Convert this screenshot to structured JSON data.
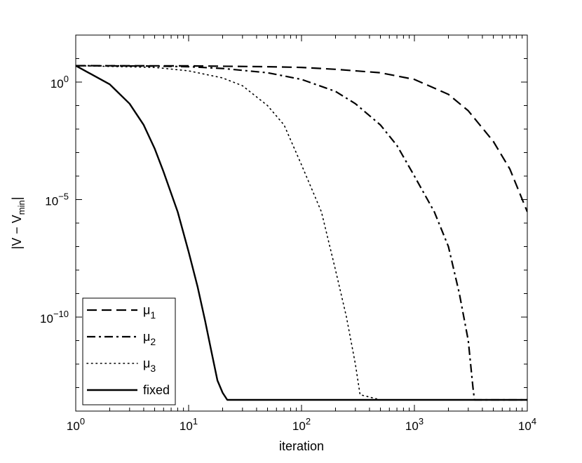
{
  "chart_data": {
    "type": "line",
    "title": "",
    "xlabel": "iteration",
    "ylabel": "|V − V_min|",
    "ylabel_parts": {
      "main": "|V − V",
      "sub": "min",
      "end": "|"
    },
    "xscale": "log",
    "yscale": "log",
    "xlim": [
      1,
      10000
    ],
    "ylim": [
      1e-14,
      100.0
    ],
    "grid": false,
    "legend_position": "bottom-left",
    "x_ticks": [
      {
        "base": "10",
        "exp": "0"
      },
      {
        "base": "10",
        "exp": "1"
      },
      {
        "base": "10",
        "exp": "2"
      },
      {
        "base": "10",
        "exp": "3"
      },
      {
        "base": "10",
        "exp": "4"
      }
    ],
    "y_ticks": [
      {
        "base": "10",
        "exp": "0",
        "value": 1
      },
      {
        "base": "10",
        "exp": "−5",
        "value": 1e-05
      },
      {
        "base": "10",
        "exp": "−10",
        "value": 1e-10
      }
    ],
    "series": [
      {
        "name": "μ1",
        "label_main": "μ",
        "label_sub": "1",
        "style": "dashed",
        "x": [
          1,
          10,
          50,
          100,
          200,
          500,
          1000,
          2000,
          3000,
          5000,
          7000,
          10000
        ],
        "y": [
          5,
          4.9,
          4.5,
          4.2,
          3.5,
          2.5,
          1.3,
          0.3,
          0.06,
          0.003,
          0.0002,
          3e-06
        ]
      },
      {
        "name": "μ2",
        "label_main": "μ",
        "label_sub": "2",
        "style": "dashdot",
        "x": [
          1,
          5,
          10,
          20,
          50,
          100,
          200,
          300,
          500,
          700,
          1000,
          1500,
          2000,
          2500,
          3000,
          3300,
          3400,
          5000,
          10000
        ],
        "y": [
          5,
          4.8,
          4.5,
          3.8,
          2.5,
          1.3,
          0.4,
          0.12,
          0.015,
          0.002,
          0.0001,
          3e-06,
          1e-07,
          1e-09,
          1e-11,
          1e-13,
          3e-14,
          3e-14,
          3e-14
        ]
      },
      {
        "name": "μ3",
        "label_main": "μ",
        "label_sub": "3",
        "style": "dotted",
        "x": [
          1,
          5,
          10,
          20,
          30,
          50,
          70,
          100,
          150,
          200,
          250,
          300,
          330,
          500,
          1000,
          3000
        ],
        "y": [
          5,
          4.2,
          3,
          1.5,
          0.7,
          0.1,
          0.015,
          0.0003,
          3e-06,
          1e-08,
          1e-10,
          1e-12,
          5e-14,
          3e-14,
          3e-14,
          3e-14
        ]
      },
      {
        "name": "fixed",
        "label_main": "fixed",
        "label_sub": "",
        "style": "solid",
        "x": [
          1,
          2,
          3,
          4,
          5,
          6,
          8,
          10,
          12,
          14,
          16,
          18,
          20,
          22,
          23,
          25,
          30,
          100,
          1000,
          10000
        ],
        "y": [
          5,
          0.8,
          0.12,
          0.015,
          0.0015,
          0.00015,
          3e-06,
          6e-08,
          2e-09,
          7e-11,
          3e-12,
          2e-13,
          6e-14,
          3e-14,
          3e-14,
          3e-14,
          3e-14,
          3e-14,
          3e-14,
          3e-14
        ]
      }
    ]
  }
}
